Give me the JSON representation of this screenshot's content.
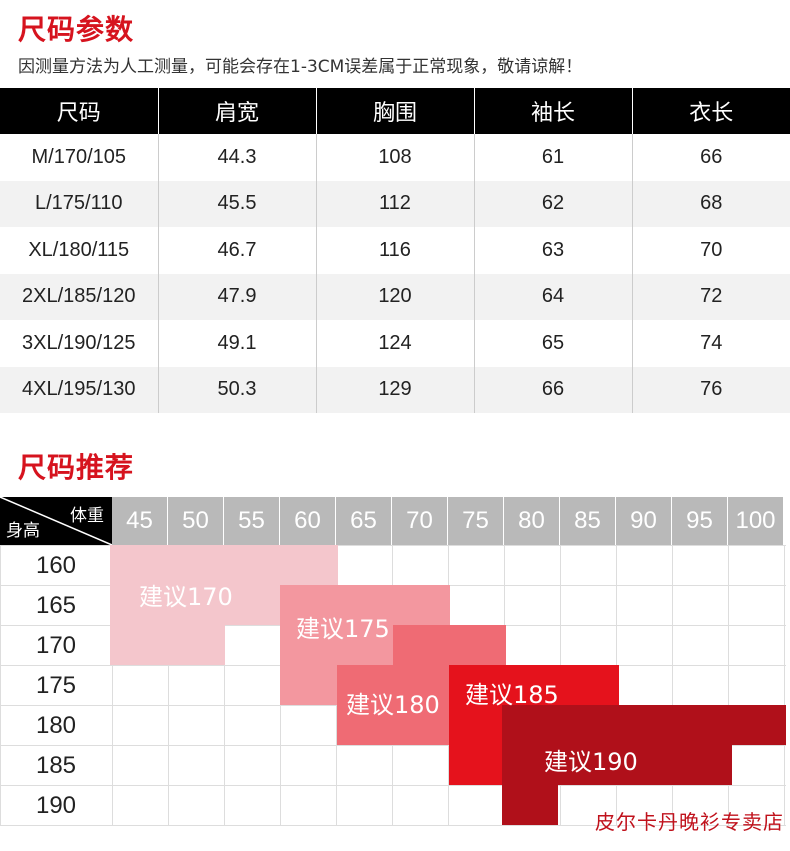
{
  "params": {
    "title": "尺码参数",
    "note": "因测量方法为人工测量，可能会存在1-3CM误差属于正常现象，敬请谅解！",
    "headers": [
      "尺码",
      "肩宽",
      "胸围",
      "袖长",
      "衣长"
    ],
    "rows": [
      [
        "M/170/105",
        "44.3",
        "108",
        "61",
        "66"
      ],
      [
        "L/175/110",
        "45.5",
        "112",
        "62",
        "68"
      ],
      [
        "XL/180/115",
        "46.7",
        "116",
        "63",
        "70"
      ],
      [
        "2XL/185/120",
        "47.9",
        "120",
        "64",
        "72"
      ],
      [
        "3XL/190/125",
        "49.1",
        "124",
        "65",
        "74"
      ],
      [
        "4XL/195/130",
        "50.3",
        "129",
        "66",
        "76"
      ]
    ]
  },
  "recommend": {
    "title": "尺码推荐",
    "corner_weight": "体重",
    "corner_height": "身高",
    "weights": [
      "45",
      "50",
      "55",
      "60",
      "65",
      "70",
      "75",
      "80",
      "85",
      "90",
      "95",
      "100"
    ],
    "heights": [
      "160",
      "165",
      "170",
      "175",
      "180",
      "185",
      "190"
    ],
    "zones": [
      {
        "label": "建议170",
        "color": "#f4c6cc"
      },
      {
        "label": "建议175",
        "color": "#f3979f"
      },
      {
        "label": "建议180",
        "color": "#ef6b74"
      },
      {
        "label": "建议185",
        "color": "#e5121c"
      },
      {
        "label": "建议190",
        "color": "#b0101a"
      }
    ]
  },
  "watermark": "皮尔卡丹晚衫专卖店"
}
